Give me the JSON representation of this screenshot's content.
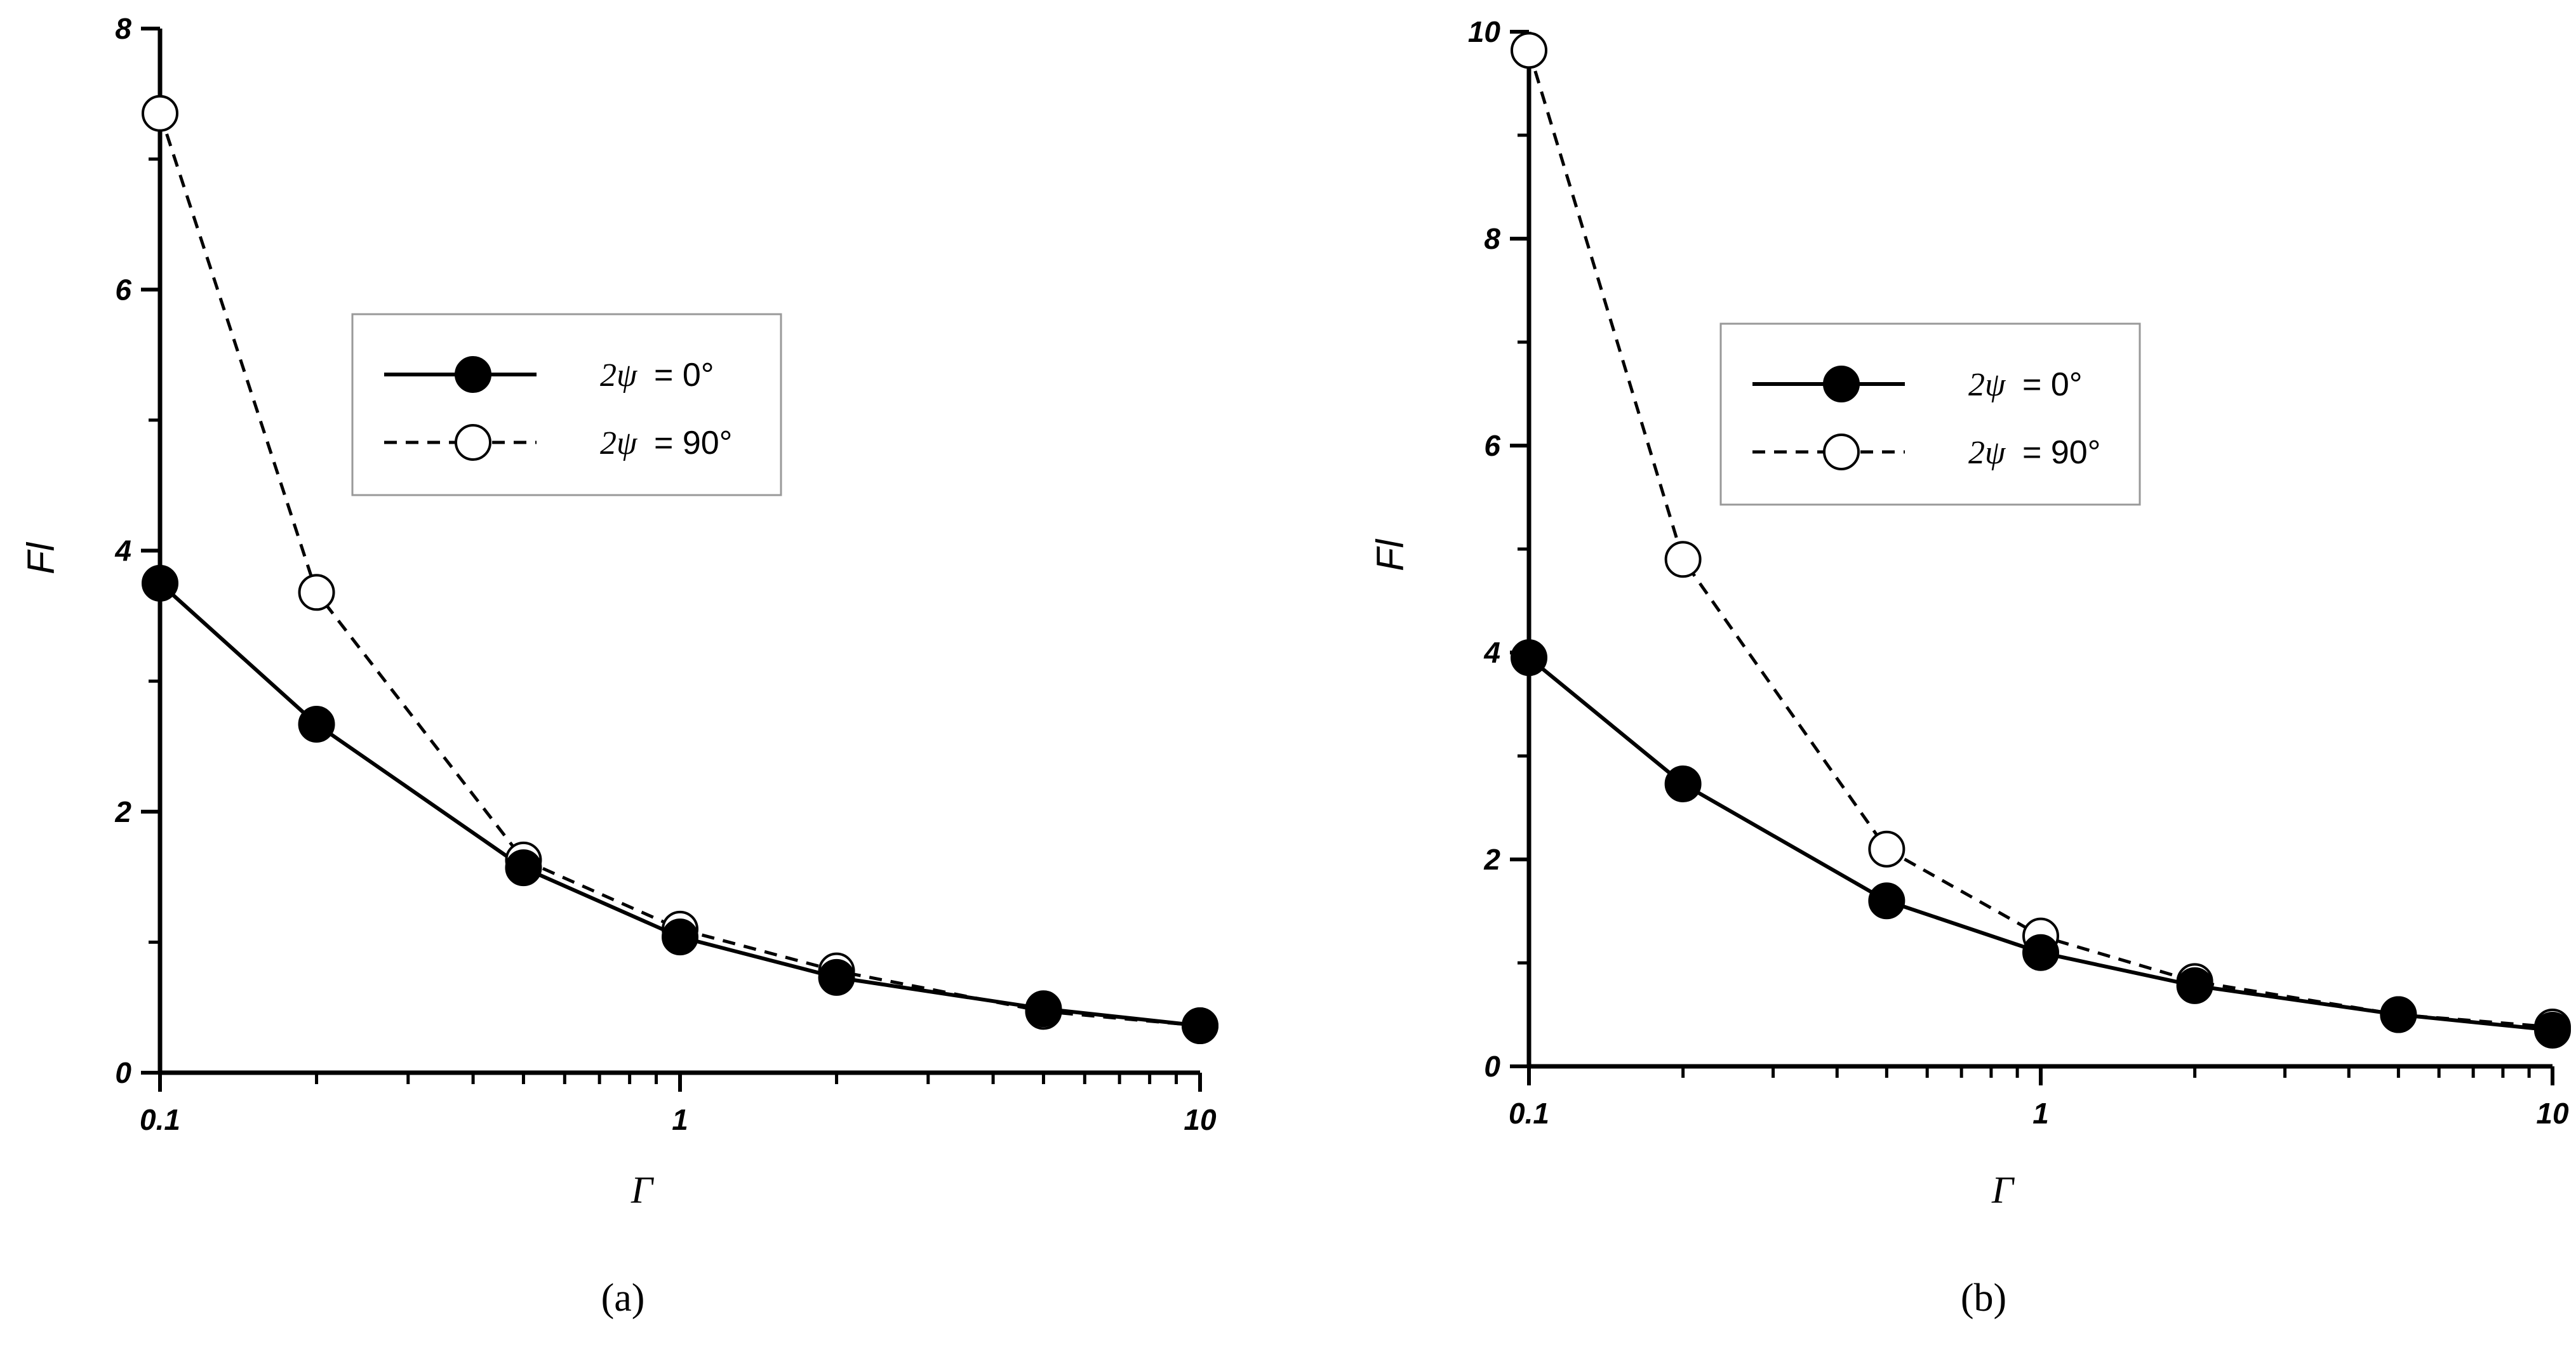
{
  "chart_data": [
    {
      "type": "line",
      "panel_label": "(a)",
      "xlabel": "Γ",
      "ylabel": "Fl",
      "xscale": "log",
      "xlim": [
        0.1,
        10
      ],
      "ylim": [
        0,
        8
      ],
      "x_tick_labels": [
        "0.1",
        "1",
        "10"
      ],
      "y_tick_labels": [
        "0",
        "2",
        "4",
        "6",
        "8"
      ],
      "legend_position": "upper-center",
      "series": [
        {
          "name": "2ψ = 0°",
          "legend_symbol": "2ψ",
          "legend_value": "= 0°",
          "style": "solid",
          "marker": "filled-circle",
          "x": [
            0.1,
            0.2,
            0.5,
            1,
            2,
            5,
            10
          ],
          "y": [
            3.75,
            2.67,
            1.57,
            1.04,
            0.73,
            0.49,
            0.36
          ]
        },
        {
          "name": "2ψ = 90°",
          "legend_symbol": "2ψ",
          "legend_value": "= 90°",
          "style": "dashed",
          "marker": "open-circle",
          "x": [
            0.1,
            0.2,
            0.5,
            1,
            2,
            5,
            10
          ],
          "y": [
            7.35,
            3.68,
            1.63,
            1.1,
            0.78,
            0.47,
            0.36
          ]
        }
      ]
    },
    {
      "type": "line",
      "panel_label": "(b)",
      "xlabel": "Γ",
      "ylabel": "Fl",
      "xscale": "log",
      "xlim": [
        0.1,
        10
      ],
      "ylim": [
        0,
        10
      ],
      "x_tick_labels": [
        "0.1",
        "1",
        "10"
      ],
      "y_tick_labels": [
        "0",
        "2",
        "4",
        "6",
        "8",
        "10"
      ],
      "legend_position": "upper-center",
      "series": [
        {
          "name": "2ψ = 0°",
          "legend_symbol": "2ψ",
          "legend_value": "= 0°",
          "style": "solid",
          "marker": "filled-circle",
          "x": [
            0.1,
            0.2,
            0.5,
            1,
            2,
            5,
            10
          ],
          "y": [
            3.95,
            2.73,
            1.6,
            1.1,
            0.78,
            0.5,
            0.35
          ]
        },
        {
          "name": "2ψ = 90°",
          "legend_symbol": "2ψ",
          "legend_value": "= 90°",
          "style": "dashed",
          "marker": "open-circle",
          "x": [
            0.1,
            0.2,
            0.5,
            1,
            2,
            5,
            10
          ],
          "y": [
            9.82,
            4.9,
            2.1,
            1.26,
            0.82,
            0.5,
            0.38
          ]
        }
      ]
    }
  ]
}
